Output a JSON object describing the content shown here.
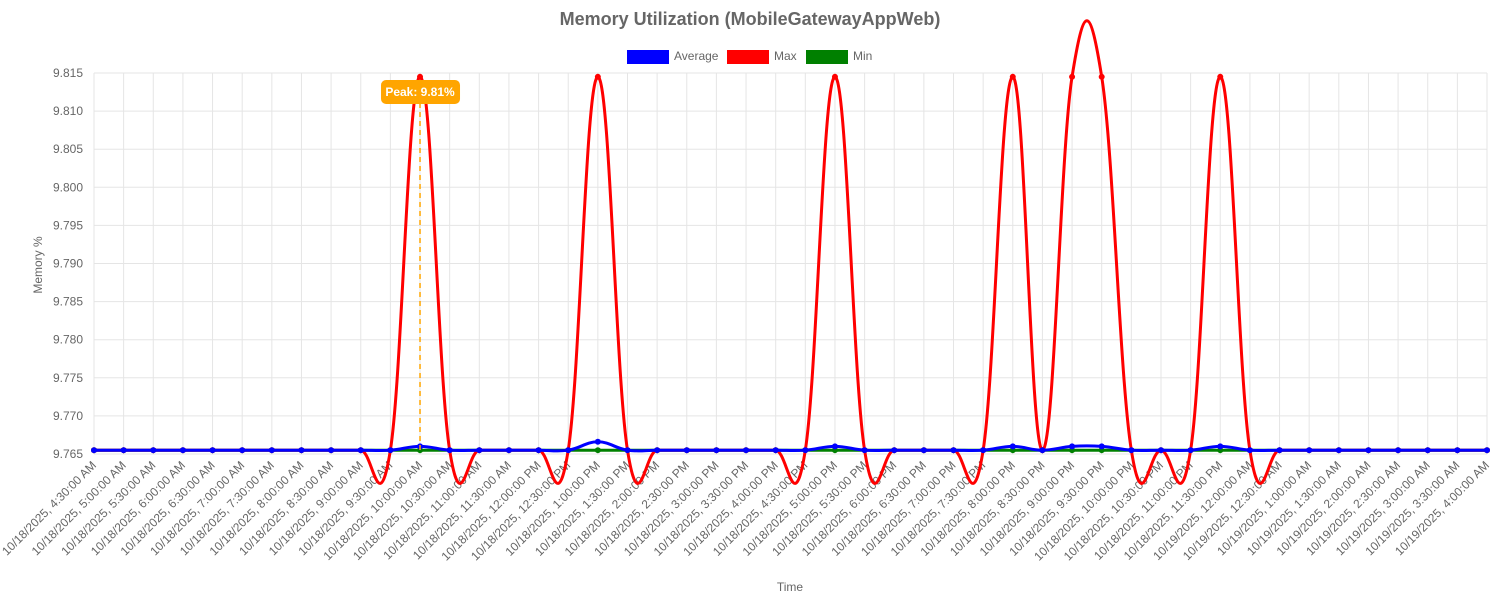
{
  "chart_data": {
    "type": "line",
    "title": "Memory Utilization (MobileGatewayAppWeb)",
    "xlabel": "Time",
    "ylabel": "Memory %",
    "ylim": [
      9.765,
      9.815
    ],
    "yticks": [
      9.765,
      9.77,
      9.775,
      9.78,
      9.785,
      9.79,
      9.795,
      9.8,
      9.805,
      9.81,
      9.815
    ],
    "grid": true,
    "legend_position": "top",
    "categories": [
      "10/18/2025, 4:30:00 AM",
      "10/18/2025, 5:00:00 AM",
      "10/18/2025, 5:30:00 AM",
      "10/18/2025, 6:00:00 AM",
      "10/18/2025, 6:30:00 AM",
      "10/18/2025, 7:00:00 AM",
      "10/18/2025, 7:30:00 AM",
      "10/18/2025, 8:00:00 AM",
      "10/18/2025, 8:30:00 AM",
      "10/18/2025, 9:00:00 AM",
      "10/18/2025, 9:30:00 AM",
      "10/18/2025, 10:00:00 AM",
      "10/18/2025, 10:30:00 AM",
      "10/18/2025, 11:00:00 AM",
      "10/18/2025, 11:30:00 AM",
      "10/18/2025, 12:00:00 PM",
      "10/18/2025, 12:30:00 PM",
      "10/18/2025, 1:00:00 PM",
      "10/18/2025, 1:30:00 PM",
      "10/18/2025, 2:00:00 PM",
      "10/18/2025, 2:30:00 PM",
      "10/18/2025, 3:00:00 PM",
      "10/18/2025, 3:30:00 PM",
      "10/18/2025, 4:00:00 PM",
      "10/18/2025, 4:30:00 PM",
      "10/18/2025, 5:00:00 PM",
      "10/18/2025, 5:30:00 PM",
      "10/18/2025, 6:00:00 PM",
      "10/18/2025, 6:30:00 PM",
      "10/18/2025, 7:00:00 PM",
      "10/18/2025, 7:30:00 PM",
      "10/18/2025, 8:00:00 PM",
      "10/18/2025, 8:30:00 PM",
      "10/18/2025, 9:00:00 PM",
      "10/18/2025, 9:30:00 PM",
      "10/18/2025, 10:00:00 PM",
      "10/18/2025, 10:30:00 PM",
      "10/18/2025, 11:00:00 PM",
      "10/18/2025, 11:30:00 PM",
      "10/19/2025, 12:00:00 AM",
      "10/19/2025, 12:30:00 AM",
      "10/19/2025, 1:00:00 AM",
      "10/19/2025, 1:30:00 AM",
      "10/19/2025, 2:00:00 AM",
      "10/19/2025, 2:30:00 AM",
      "10/19/2025, 3:00:00 AM",
      "10/19/2025, 3:30:00 AM",
      "10/19/2025, 4:00:00 AM"
    ],
    "series": [
      {
        "name": "Average",
        "color": "#0000ff",
        "values": [
          9.7655,
          9.7655,
          9.7655,
          9.7655,
          9.7655,
          9.7655,
          9.7655,
          9.7655,
          9.7655,
          9.7655,
          9.7655,
          9.766,
          9.7655,
          9.7655,
          9.7655,
          9.7655,
          9.7655,
          9.7666,
          9.7655,
          9.7655,
          9.7655,
          9.7655,
          9.7655,
          9.7655,
          9.7655,
          9.766,
          9.7655,
          9.7655,
          9.7655,
          9.7655,
          9.7655,
          9.766,
          9.7655,
          9.766,
          9.766,
          9.7655,
          9.7655,
          9.7655,
          9.766,
          9.7655,
          9.7655,
          9.7655,
          9.7655,
          9.7655,
          9.7655,
          9.7655,
          9.7655,
          9.7655
        ]
      },
      {
        "name": "Max",
        "color": "#ff0000",
        "values": [
          9.7655,
          9.7655,
          9.7655,
          9.7655,
          9.7655,
          9.7655,
          9.7655,
          9.7655,
          9.7655,
          9.7655,
          9.7655,
          9.8145,
          9.7655,
          9.7655,
          9.7655,
          9.7655,
          9.7655,
          9.8145,
          9.7655,
          9.7655,
          9.7655,
          9.7655,
          9.7655,
          9.7655,
          9.7655,
          9.8145,
          9.7655,
          9.7655,
          9.7655,
          9.7655,
          9.7655,
          9.8145,
          9.7655,
          9.8145,
          9.8145,
          9.7655,
          9.7655,
          9.7655,
          9.8145,
          9.7655,
          9.7655,
          9.7655,
          9.7655,
          9.7655,
          9.7655,
          9.7655,
          9.7655,
          9.7655
        ]
      },
      {
        "name": "Min",
        "color": "#008000",
        "values": [
          9.7655,
          9.7655,
          9.7655,
          9.7655,
          9.7655,
          9.7655,
          9.7655,
          9.7655,
          9.7655,
          9.7655,
          9.7655,
          9.7655,
          9.7655,
          9.7655,
          9.7655,
          9.7655,
          9.7655,
          9.7655,
          9.7655,
          9.7655,
          9.7655,
          9.7655,
          9.7655,
          9.7655,
          9.7655,
          9.7655,
          9.7655,
          9.7655,
          9.7655,
          9.7655,
          9.7655,
          9.7655,
          9.7655,
          9.7655,
          9.7655,
          9.7655,
          9.7655,
          9.7655,
          9.7655,
          9.7655,
          9.7655,
          9.7655,
          9.7655,
          9.7655,
          9.7655,
          9.7655,
          9.7655,
          9.7655
        ]
      }
    ],
    "annotations": [
      {
        "text": "Peak: 9.81%",
        "category_index": 11,
        "color": "#ffa500"
      }
    ]
  }
}
